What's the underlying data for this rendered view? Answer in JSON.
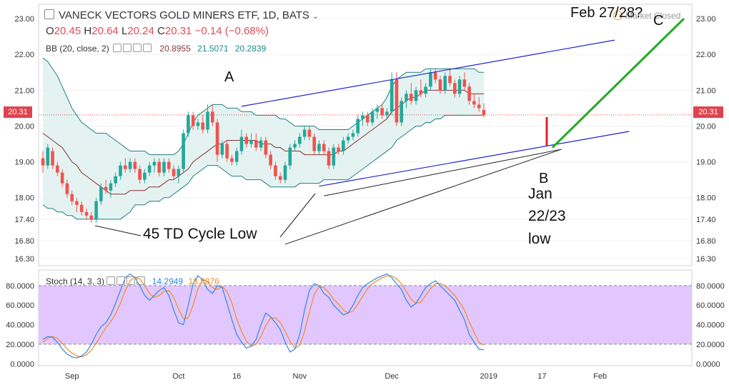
{
  "header": {
    "title": "VANECK VECTORS GOLD MINERS ETF, 1D, BATS",
    "ohlc": {
      "o_label": "O",
      "o": "20.45",
      "h_label": "H",
      "h": "20.64",
      "l_label": "L",
      "l": "20.24",
      "c_label": "C",
      "c": "20.31",
      "change": "−0.14 (−0.68%)"
    },
    "bb": {
      "label": "BB (20, close, 2)",
      "basis": "20.8955",
      "upper": "21.5071",
      "lower": "20.2839"
    },
    "stoch": {
      "label": "Stoch (14, 3, 3)",
      "k": "14.2949",
      "d": "18.8876"
    },
    "market_status": "Market Closed",
    "last_price": "20.31"
  },
  "annotations": {
    "a": "A",
    "b": "B",
    "c": "C",
    "feb": "Feb 27/28?",
    "cycle_low": "45 TD Cycle Low",
    "jan_line1": "Jan",
    "jan_line2": "22/23",
    "jan_line3": "low"
  },
  "colors": {
    "up": "#26a69a",
    "down": "#ef5350",
    "bb_fill": "#e4f3f1",
    "bb_band": "#1f7f7f",
    "bb_basis": "#8b3030",
    "trend": "#2222cc",
    "projection": "#22aa22",
    "stoch_bg": "#e2c7ff",
    "stoch_k": "#2e86e0",
    "stoch_d": "#f08a28",
    "price_line": "#e0434f"
  },
  "chart_data": {
    "type": "candlestick",
    "price_axis": {
      "ticks": [
        23.0,
        22.0,
        21.0,
        20.0,
        19.0,
        18.0,
        17.4,
        16.8,
        16.3
      ],
      "range": [
        16.1,
        23.4
      ]
    },
    "stoch_axis": {
      "ticks": [
        80.0,
        60.0,
        40.0,
        20.0,
        0.0
      ],
      "range": [
        -2,
        96
      ],
      "overbought": 80,
      "oversold": 20
    },
    "time_axis": {
      "labels": [
        "Sep",
        "Oct",
        "16",
        "Nov",
        "Dec",
        "2019",
        "17",
        "Feb"
      ],
      "label_bar_index": [
        6,
        28,
        40,
        53,
        72,
        92,
        103,
        115
      ]
    },
    "candles": [
      [
        19.1,
        19.3,
        18.7,
        18.9
      ],
      [
        18.9,
        19.5,
        18.8,
        19.4
      ],
      [
        19.3,
        19.4,
        18.8,
        18.9
      ],
      [
        18.9,
        19.0,
        18.6,
        18.7
      ],
      [
        18.7,
        18.8,
        18.3,
        18.4
      ],
      [
        18.4,
        18.5,
        18.0,
        18.1
      ],
      [
        18.1,
        18.2,
        17.8,
        17.9
      ],
      [
        17.9,
        18.0,
        17.6,
        17.8
      ],
      [
        17.8,
        17.9,
        17.5,
        17.6
      ],
      [
        17.6,
        17.7,
        17.4,
        17.5
      ],
      [
        17.5,
        17.6,
        17.3,
        17.4
      ],
      [
        17.4,
        18.0,
        17.3,
        17.9
      ],
      [
        17.9,
        18.4,
        17.8,
        18.3
      ],
      [
        18.3,
        18.5,
        18.1,
        18.2
      ],
      [
        18.2,
        18.5,
        18.0,
        18.4
      ],
      [
        18.4,
        18.7,
        18.3,
        18.6
      ],
      [
        18.6,
        19.0,
        18.5,
        18.9
      ],
      [
        18.9,
        19.1,
        18.7,
        18.8
      ],
      [
        18.8,
        19.1,
        18.7,
        19.0
      ],
      [
        19.0,
        19.1,
        18.7,
        18.8
      ],
      [
        18.8,
        18.9,
        18.4,
        18.5
      ],
      [
        18.5,
        18.8,
        18.4,
        18.7
      ],
      [
        18.7,
        19.0,
        18.6,
        18.9
      ],
      [
        18.9,
        19.1,
        18.7,
        19.0
      ],
      [
        19.0,
        19.1,
        18.6,
        18.7
      ],
      [
        18.7,
        19.1,
        18.6,
        19.0
      ],
      [
        19.0,
        19.1,
        18.7,
        18.8
      ],
      [
        18.8,
        18.9,
        18.5,
        18.6
      ],
      [
        18.6,
        18.9,
        18.4,
        18.8
      ],
      [
        18.8,
        19.9,
        18.7,
        19.8
      ],
      [
        19.8,
        20.4,
        19.7,
        20.3
      ],
      [
        20.3,
        20.4,
        19.9,
        20.0
      ],
      [
        20.0,
        20.2,
        19.9,
        20.1
      ],
      [
        20.1,
        20.3,
        19.8,
        19.9
      ],
      [
        19.9,
        20.6,
        19.8,
        20.4
      ],
      [
        20.4,
        20.6,
        20.0,
        20.1
      ],
      [
        20.1,
        20.2,
        19.0,
        19.2
      ],
      [
        19.2,
        19.6,
        19.1,
        19.5
      ],
      [
        19.5,
        19.6,
        19.0,
        19.1
      ],
      [
        19.1,
        19.2,
        18.9,
        19.0
      ],
      [
        19.0,
        19.4,
        18.9,
        19.3
      ],
      [
        19.3,
        19.9,
        19.2,
        19.7
      ],
      [
        19.7,
        19.8,
        19.4,
        19.5
      ],
      [
        19.5,
        19.8,
        19.4,
        19.6
      ],
      [
        19.6,
        19.8,
        19.3,
        19.4
      ],
      [
        19.4,
        19.7,
        19.3,
        19.6
      ],
      [
        19.6,
        19.7,
        19.1,
        19.2
      ],
      [
        19.2,
        19.3,
        18.8,
        18.9
      ],
      [
        18.9,
        19.0,
        18.5,
        18.6
      ],
      [
        18.6,
        18.7,
        18.4,
        18.5
      ],
      [
        18.5,
        19.0,
        18.4,
        18.9
      ],
      [
        18.9,
        19.5,
        18.8,
        19.4
      ],
      [
        19.4,
        19.6,
        19.3,
        19.5
      ],
      [
        19.5,
        19.8,
        19.4,
        19.7
      ],
      [
        19.7,
        20.0,
        19.6,
        19.9
      ],
      [
        19.9,
        20.0,
        19.6,
        19.7
      ],
      [
        19.7,
        19.8,
        19.2,
        19.3
      ],
      [
        19.3,
        19.6,
        19.2,
        19.5
      ],
      [
        19.5,
        19.6,
        19.2,
        19.3
      ],
      [
        19.3,
        19.4,
        18.8,
        18.9
      ],
      [
        18.9,
        19.5,
        18.8,
        19.4
      ],
      [
        19.4,
        19.5,
        19.2,
        19.3
      ],
      [
        19.3,
        19.7,
        19.2,
        19.6
      ],
      [
        19.6,
        19.8,
        19.5,
        19.7
      ],
      [
        19.7,
        19.9,
        19.6,
        19.8
      ],
      [
        19.8,
        20.3,
        19.7,
        20.2
      ],
      [
        20.2,
        20.4,
        20.0,
        20.3
      ],
      [
        20.3,
        20.4,
        20.0,
        20.1
      ],
      [
        20.1,
        20.5,
        20.0,
        20.4
      ],
      [
        20.4,
        20.6,
        20.2,
        20.5
      ],
      [
        20.5,
        20.6,
        20.2,
        20.3
      ],
      [
        20.3,
        20.5,
        20.2,
        20.4
      ],
      [
        20.4,
        21.5,
        20.3,
        21.3
      ],
      [
        21.3,
        21.5,
        20.0,
        20.1
      ],
      [
        20.1,
        20.8,
        20.0,
        20.7
      ],
      [
        20.7,
        21.0,
        20.5,
        20.9
      ],
      [
        20.9,
        21.2,
        20.6,
        20.7
      ],
      [
        20.7,
        21.1,
        20.6,
        21.0
      ],
      [
        21.0,
        21.3,
        20.8,
        20.9
      ],
      [
        20.9,
        21.2,
        20.8,
        21.1
      ],
      [
        21.1,
        21.6,
        21.0,
        21.5
      ],
      [
        21.5,
        21.6,
        21.2,
        21.3
      ],
      [
        21.3,
        21.4,
        20.9,
        21.0
      ],
      [
        21.0,
        21.5,
        20.9,
        21.4
      ],
      [
        21.4,
        21.6,
        21.1,
        21.2
      ],
      [
        21.2,
        21.3,
        20.8,
        20.9
      ],
      [
        20.9,
        21.4,
        20.8,
        21.3
      ],
      [
        21.3,
        21.5,
        21.0,
        21.1
      ],
      [
        21.1,
        21.2,
        20.6,
        20.7
      ],
      [
        20.7,
        20.9,
        20.5,
        20.6
      ],
      [
        20.6,
        20.8,
        20.4,
        20.5
      ],
      [
        20.45,
        20.64,
        20.24,
        20.31
      ]
    ],
    "bb_upper": [
      21.9,
      21.8,
      21.6,
      21.4,
      21.1,
      20.8,
      20.5,
      20.3,
      20.1,
      20.0,
      19.9,
      19.8,
      19.8,
      19.8,
      19.7,
      19.6,
      19.5,
      19.4,
      19.3,
      19.3,
      19.3,
      19.3,
      19.2,
      19.2,
      19.2,
      19.2,
      19.2,
      19.2,
      19.3,
      19.5,
      19.8,
      20.1,
      20.3,
      20.4,
      20.5,
      20.6,
      20.6,
      20.6,
      20.5,
      20.5,
      20.5,
      20.4,
      20.4,
      20.4,
      20.3,
      20.3,
      20.3,
      20.3,
      20.3,
      20.2,
      20.2,
      20.1,
      20.0,
      20.0,
      20.0,
      20.0,
      20.0,
      19.9,
      19.9,
      19.9,
      19.9,
      19.9,
      19.9,
      19.9,
      20.0,
      20.1,
      20.2,
      20.3,
      20.4,
      20.5,
      20.6,
      20.8,
      21.1,
      21.3,
      21.4,
      21.5,
      21.5,
      21.5,
      21.5,
      21.6,
      21.6,
      21.6,
      21.6,
      21.6,
      21.6,
      21.6,
      21.6,
      21.6,
      21.6,
      21.6,
      21.5,
      21.5
    ],
    "bb_basis": [
      19.8,
      19.7,
      19.6,
      19.5,
      19.4,
      19.2,
      19.0,
      18.9,
      18.7,
      18.6,
      18.5,
      18.4,
      18.3,
      18.2,
      18.1,
      18.1,
      18.1,
      18.1,
      18.2,
      18.2,
      18.2,
      18.2,
      18.3,
      18.3,
      18.3,
      18.4,
      18.5,
      18.5,
      18.6,
      18.7,
      18.8,
      19.0,
      19.1,
      19.2,
      19.3,
      19.4,
      19.5,
      19.5,
      19.6,
      19.6,
      19.6,
      19.6,
      19.6,
      19.6,
      19.6,
      19.5,
      19.5,
      19.5,
      19.4,
      19.4,
      19.3,
      19.3,
      19.3,
      19.3,
      19.2,
      19.2,
      19.2,
      19.2,
      19.2,
      19.2,
      19.2,
      19.3,
      19.3,
      19.4,
      19.5,
      19.6,
      19.7,
      19.8,
      19.9,
      20.0,
      20.1,
      20.2,
      20.4,
      20.5,
      20.6,
      20.7,
      20.8,
      20.8,
      20.9,
      21.0,
      21.0,
      21.0,
      21.0,
      21.0,
      21.0,
      21.0,
      21.0,
      21.0,
      20.9,
      20.9,
      20.9,
      20.9
    ],
    "bb_lower": [
      17.8,
      17.7,
      17.7,
      17.6,
      17.6,
      17.5,
      17.5,
      17.4,
      17.4,
      17.4,
      17.4,
      17.4,
      17.4,
      17.4,
      17.4,
      17.4,
      17.4,
      17.5,
      17.6,
      17.8,
      17.8,
      17.8,
      17.9,
      17.9,
      17.9,
      18.0,
      18.0,
      18.1,
      18.2,
      18.3,
      18.4,
      18.6,
      18.7,
      18.8,
      18.9,
      18.9,
      18.9,
      18.8,
      18.7,
      18.6,
      18.6,
      18.6,
      18.5,
      18.5,
      18.5,
      18.5,
      18.4,
      18.3,
      18.3,
      18.3,
      18.3,
      18.3,
      18.3,
      18.4,
      18.4,
      18.4,
      18.4,
      18.4,
      18.5,
      18.5,
      18.5,
      18.5,
      18.5,
      18.5,
      18.6,
      18.7,
      18.8,
      18.9,
      19.0,
      19.1,
      19.2,
      19.3,
      19.4,
      19.6,
      19.7,
      19.8,
      19.9,
      20.0,
      20.0,
      20.1,
      20.1,
      20.2,
      20.2,
      20.3,
      20.3,
      20.3,
      20.3,
      20.3,
      20.3,
      20.3,
      20.3,
      20.3
    ],
    "stoch_k": [
      25,
      28,
      27,
      22,
      15,
      10,
      7,
      6,
      8,
      12,
      20,
      30,
      38,
      42,
      50,
      62,
      75,
      88,
      92,
      88,
      80,
      70,
      65,
      70,
      75,
      78,
      70,
      55,
      42,
      40,
      60,
      82,
      90,
      86,
      76,
      72,
      80,
      78,
      62,
      45,
      30,
      22,
      16,
      18,
      25,
      40,
      52,
      48,
      42,
      35,
      22,
      12,
      15,
      30,
      55,
      75,
      82,
      80,
      72,
      68,
      60,
      55,
      50,
      52,
      60,
      70,
      78,
      82,
      85,
      88,
      90,
      92,
      88,
      82,
      76,
      65,
      58,
      62,
      70,
      78,
      82,
      85,
      80,
      75,
      70,
      65,
      55,
      45,
      30,
      22,
      15,
      14.3
    ],
    "stoch_d": [
      22,
      26,
      28,
      26,
      21,
      15,
      11,
      8,
      7,
      9,
      14,
      21,
      29,
      37,
      43,
      51,
      62,
      75,
      85,
      89,
      87,
      80,
      72,
      68,
      70,
      74,
      75,
      68,
      56,
      46,
      47,
      60,
      77,
      86,
      84,
      78,
      76,
      79,
      74,
      62,
      46,
      33,
      23,
      18,
      20,
      28,
      39,
      47,
      47,
      42,
      33,
      23,
      16,
      19,
      33,
      53,
      71,
      79,
      78,
      73,
      66,
      61,
      55,
      52,
      54,
      61,
      69,
      77,
      82,
      85,
      88,
      90,
      90,
      87,
      82,
      74,
      66,
      62,
      63,
      70,
      77,
      82,
      82,
      80,
      75,
      70,
      63,
      55,
      43,
      32,
      22,
      18.9
    ]
  }
}
